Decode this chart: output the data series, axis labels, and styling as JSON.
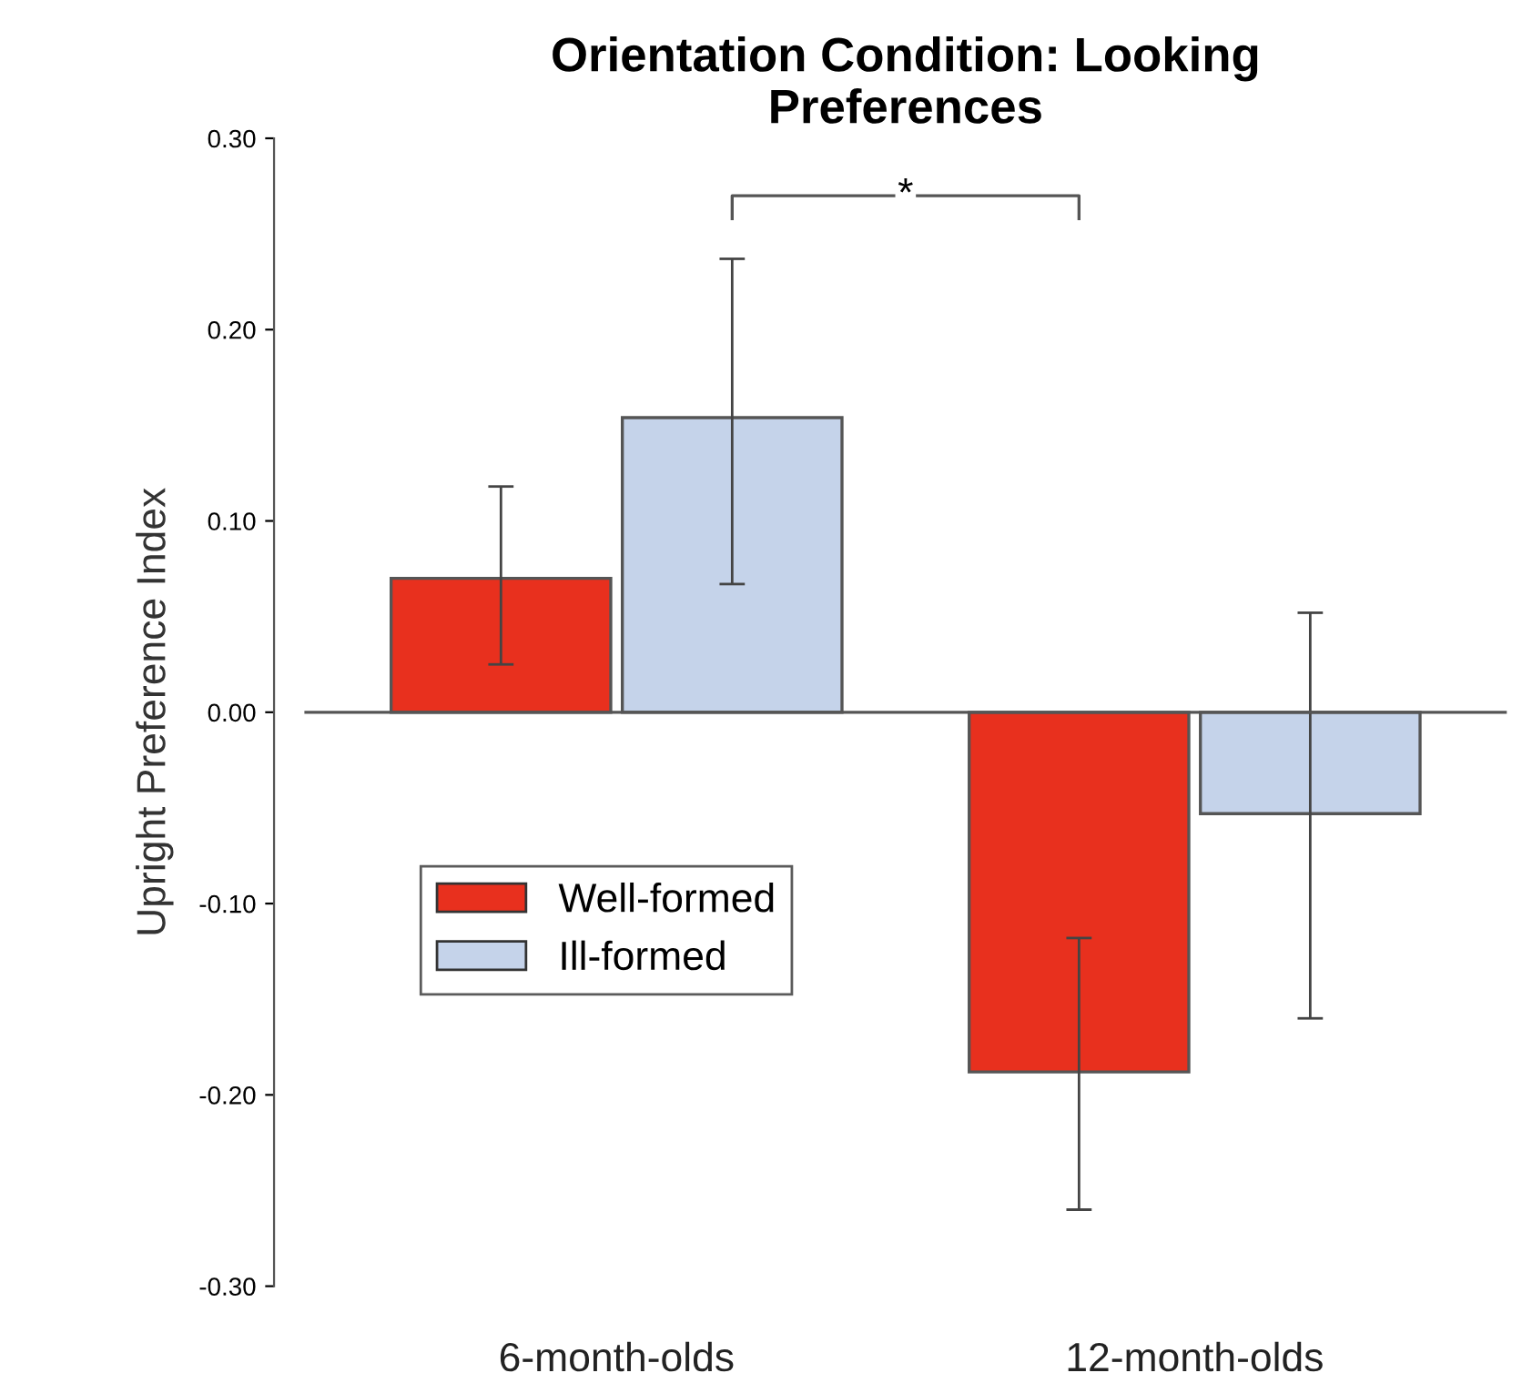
{
  "chart_data": {
    "type": "bar",
    "title": "Orientation Condition: Looking\nPreferences",
    "ylabel": "Upright Preference Index",
    "categories": [
      "6-month-olds",
      "12-month-olds"
    ],
    "series": [
      {
        "name": "Well-formed",
        "color": "#e8301e",
        "values": [
          0.07,
          -0.188
        ],
        "errors": [
          [
            0.025,
            0.118
          ],
          [
            -0.26,
            -0.118
          ]
        ]
      },
      {
        "name": "Ill-formed",
        "color": "#c5d3ea",
        "values": [
          0.154,
          -0.053
        ],
        "errors": [
          [
            0.067,
            0.237
          ],
          [
            -0.16,
            0.052
          ]
        ]
      }
    ],
    "ylim": [
      -0.3,
      0.3
    ],
    "yticks": [
      {
        "value": 0.3,
        "label": "0.30"
      },
      {
        "value": 0.2,
        "label": "0.20"
      },
      {
        "value": 0.1,
        "label": "0.10"
      },
      {
        "value": 0,
        "label": "0.00"
      },
      {
        "value": -0.1,
        "label": "-0.10"
      },
      {
        "value": -0.2,
        "label": "-0.20"
      },
      {
        "value": -0.3,
        "label": "-0.30"
      }
    ],
    "ref_lines": [
      {
        "axis": "y",
        "value": 0,
        "color": "#555555"
      }
    ],
    "annotations": [
      "*"
    ],
    "legend": "left",
    "grid": false
  }
}
